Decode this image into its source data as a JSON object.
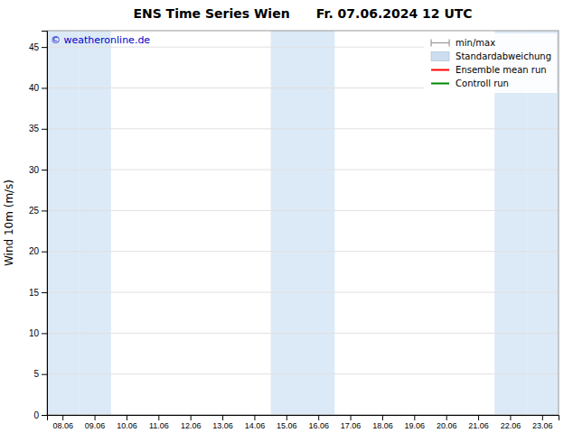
{
  "chart_data": {
    "type": "line",
    "title": "ENS Time Series Wien      Fr. 07.06.2024 12 UTC",
    "y_label": "Wind 10m (m/s)",
    "categories": [
      "08.06",
      "09.06",
      "10.06",
      "11.06",
      "12.06",
      "13.06",
      "14.06",
      "15.06",
      "16.06",
      "17.06",
      "18.06",
      "19.06",
      "20.06",
      "21.06",
      "22.06",
      "23.06"
    ],
    "series": [
      {
        "name": "min/max",
        "color": "#999999",
        "type": "range",
        "values": [
          null,
          null,
          null,
          null,
          null,
          null,
          null,
          null,
          null,
          null,
          null,
          null,
          null,
          null,
          null,
          null
        ]
      },
      {
        "name": "Standardabweichung",
        "color": "#ccddf0",
        "type": "area",
        "values": [
          null,
          null,
          null,
          null,
          null,
          null,
          null,
          null,
          null,
          null,
          null,
          null,
          null,
          null,
          null,
          null
        ]
      },
      {
        "name": "Ensemble mean run",
        "color": "#ff0000",
        "type": "line",
        "values": [
          null,
          null,
          null,
          null,
          null,
          null,
          null,
          null,
          null,
          null,
          null,
          null,
          null,
          null,
          null,
          null
        ]
      },
      {
        "name": "Controll run",
        "color": "#008800",
        "type": "line",
        "values": [
          null,
          null,
          null,
          null,
          null,
          null,
          null,
          null,
          null,
          null,
          null,
          null,
          null,
          null,
          null,
          null
        ]
      }
    ],
    "bands": {
      "categories": [
        "08.06",
        "09.06",
        "15.06",
        "16.06",
        "22.06",
        "23.06"
      ],
      "color": "#dce9f7"
    },
    "annotations": [
      {
        "text": "© weatheronline.de",
        "color": "#0000cc"
      }
    ],
    "ylim": [
      0,
      47
    ],
    "yticks": [
      0,
      5,
      10,
      15,
      20,
      25,
      30,
      35,
      40,
      45
    ],
    "grid": true,
    "legend": "upper right"
  }
}
